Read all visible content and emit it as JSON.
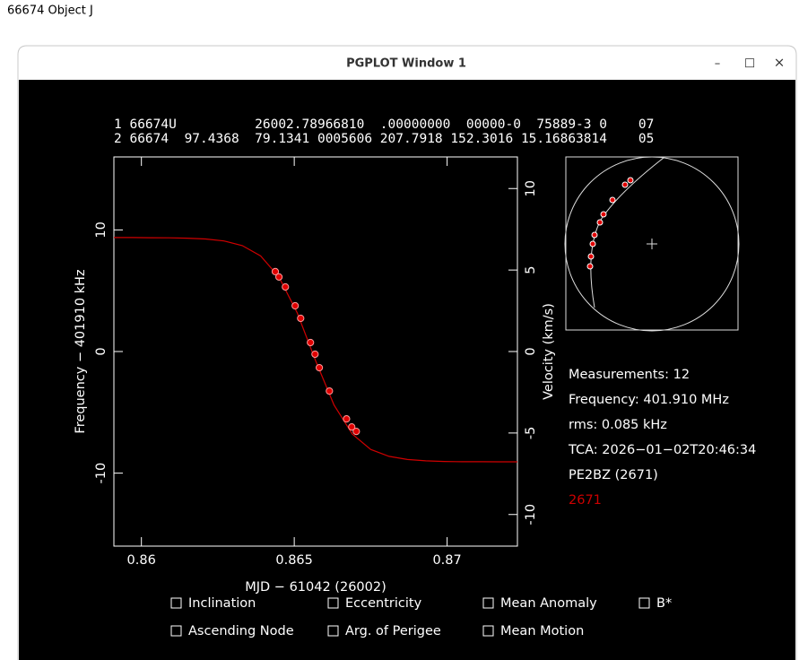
{
  "page": {
    "caption": "66674 Object J"
  },
  "window": {
    "title": "PGPLOT Window 1",
    "controls": [
      "–",
      "□",
      "×"
    ]
  },
  "chart_data": {
    "type": "scatter",
    "header_lines": [
      "1 66674U          26002.78966810  .00000000  00000-0  75889-3 0    07",
      "2 66674  97.4368  79.1341 0005606 207.7918 152.3016 15.16863814    05"
    ],
    "xlabel": "MJD − 61042 (26002)",
    "ylabel": "Frequency − 401910 kHz",
    "y2label": "Velocity (km/s)",
    "xlim": [
      0.8591,
      0.8723
    ],
    "ylim": [
      -16,
      16
    ],
    "y2lim": [
      -11.94,
      11.94
    ],
    "xticks": [
      0.86,
      0.865,
      0.87
    ],
    "yticks": [
      -10,
      0,
      10
    ],
    "y2ticks": [
      -10,
      -5,
      0,
      5,
      10
    ],
    "series": [
      {
        "style": "line",
        "color": "#d00000",
        "x": [
          0.8591,
          0.8597,
          0.8603,
          0.8609,
          0.8615,
          0.8621,
          0.8627,
          0.8633,
          0.8639,
          0.8645,
          0.8651,
          0.8657,
          0.8663,
          0.8669,
          0.8675,
          0.8681,
          0.8687,
          0.8693,
          0.8699,
          0.8705,
          0.8711,
          0.8717,
          0.8723
        ],
        "values": [
          9.37,
          9.37,
          9.36,
          9.35,
          9.32,
          9.25,
          9.09,
          8.71,
          7.86,
          6.12,
          3.17,
          -0.77,
          -4.4,
          -6.79,
          -8.05,
          -8.62,
          -8.88,
          -8.99,
          -9.04,
          -9.06,
          -9.06,
          -9.07,
          -9.07
        ]
      },
      {
        "style": "points",
        "color": "#e00000",
        "x": [
          0.86438,
          0.8645,
          0.86471,
          0.86503,
          0.86521,
          0.86553,
          0.86568,
          0.86582,
          0.86615,
          0.86671,
          0.86688,
          0.86703
        ],
        "values": [
          6.57,
          6.13,
          5.31,
          3.76,
          2.73,
          0.74,
          -0.22,
          -1.33,
          -3.25,
          -5.54,
          -6.2,
          -6.57
        ]
      }
    ],
    "info": [
      "Measurements: 12",
      "Frequency: 401.910 MHz",
      "rms: 0.085 kHz",
      "TCA: 2026−01−02T20:46:34",
      "PE2BZ (2671)"
    ],
    "station": {
      "text": "2671",
      "color": "#cc0000"
    },
    "options": [
      [
        "Inclination",
        "Eccentricity",
        "Mean Anomaly",
        "B*"
      ],
      [
        "Ascending Node",
        "Arg. of Perigee",
        "Mean Motion"
      ]
    ]
  }
}
